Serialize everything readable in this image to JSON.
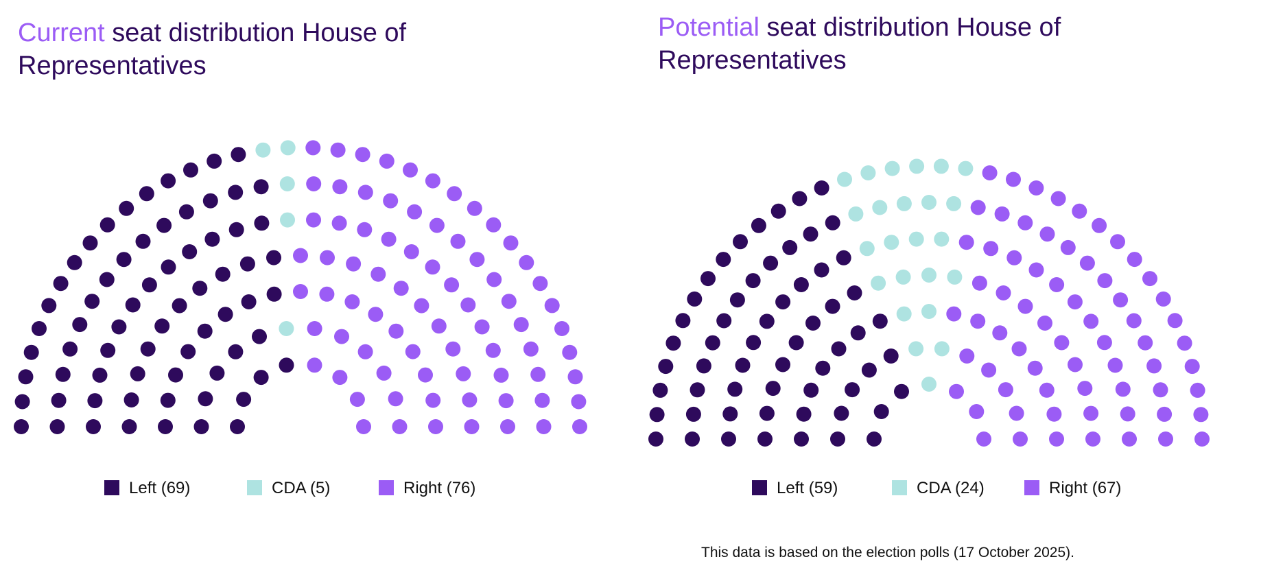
{
  "colors": {
    "left": "#2e0a5c",
    "cda": "#aee3e1",
    "right": "#9b5cf5",
    "title": "#2e0a5c"
  },
  "panels": [
    {
      "title_accent": "Current",
      "title_rest": " seat distribution House of Representatives",
      "legend": [
        "Left (69)",
        "CDA (5)",
        "Right (76)"
      ]
    },
    {
      "title_accent": "Potential",
      "title_rest": " seat distribution House of Representatives",
      "legend": [
        "Left (59)",
        "CDA (24)",
        "Right (67)"
      ]
    }
  ],
  "footnote": "This data is based on the election polls (17 October 2025).",
  "chart_data": [
    {
      "type": "parliament",
      "title": "Current seat distribution House of Representatives",
      "total_seats": 150,
      "series": [
        {
          "name": "Left",
          "value": 69,
          "color": "#2e0a5c"
        },
        {
          "name": "CDA",
          "value": 5,
          "color": "#aee3e1"
        },
        {
          "name": "Right",
          "value": 76,
          "color": "#9b5cf5"
        }
      ],
      "legend_position": "bottom"
    },
    {
      "type": "parliament",
      "title": "Potential seat distribution House of Representatives",
      "total_seats": 150,
      "series": [
        {
          "name": "Left",
          "value": 59,
          "color": "#2e0a5c"
        },
        {
          "name": "CDA",
          "value": 24,
          "color": "#aee3e1"
        },
        {
          "name": "Right",
          "value": 67,
          "color": "#9b5cf5"
        }
      ],
      "legend_position": "bottom"
    }
  ]
}
